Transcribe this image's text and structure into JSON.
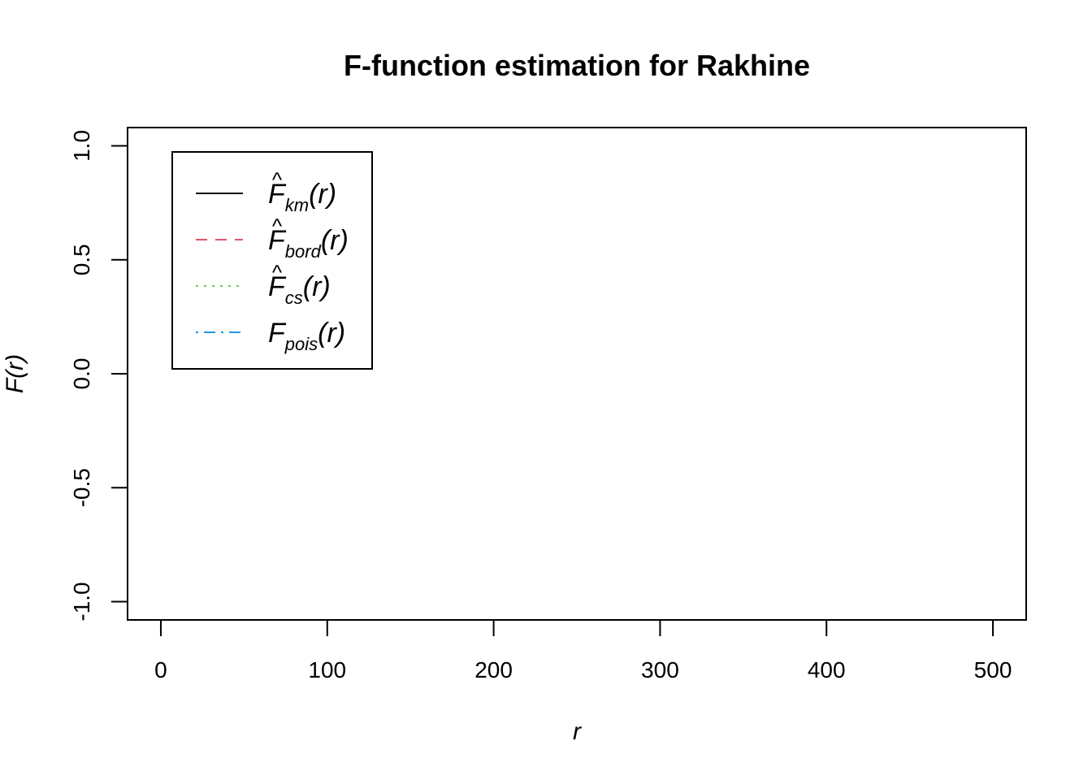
{
  "chart_data": {
    "type": "line",
    "title": "F-function estimation for Rakhine",
    "xlabel": "r",
    "ylabel": "F(r)",
    "xlim": [
      -20,
      520
    ],
    "ylim": [
      -1.08,
      1.08
    ],
    "x_ticks": [
      0,
      100,
      200,
      300,
      400,
      500
    ],
    "y_ticks": [
      -1.0,
      -0.5,
      0.0,
      0.5,
      1.0
    ],
    "y_tick_labels": [
      "-1.0",
      "-0.5",
      "0.0",
      "0.5",
      "1.0"
    ],
    "grid": false,
    "legend_position": "top-left",
    "series": [
      {
        "name": "F̂km(r)",
        "base": "F",
        "hat": true,
        "sub": "km",
        "color": "#000000",
        "dash": "solid",
        "values": []
      },
      {
        "name": "F̂bord(r)",
        "base": "F",
        "hat": true,
        "sub": "bord",
        "color": "#DF536B",
        "dash": "dashed",
        "values": []
      },
      {
        "name": "F̂cs(r)",
        "base": "F",
        "hat": true,
        "sub": "cs",
        "color": "#61D04F",
        "dash": "dotted",
        "values": []
      },
      {
        "name": "Fpois(r)",
        "base": "F",
        "hat": false,
        "sub": "pois",
        "color": "#2297E6",
        "dash": "dotdash",
        "values": []
      }
    ]
  }
}
